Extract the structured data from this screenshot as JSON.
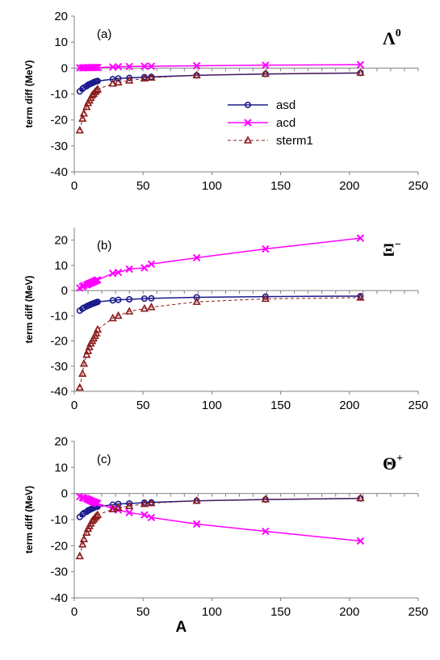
{
  "chart_data": [
    {
      "type": "line",
      "panel_label": "(a)",
      "particle": {
        "symbol": "Λ",
        "sup": "0"
      },
      "ylabel": "term diff (MeV)",
      "xlabel": "",
      "xlim": [
        0,
        250
      ],
      "ylim": [
        -40,
        20
      ],
      "xticks": [
        "0",
        "50",
        "100",
        "150",
        "200",
        "250"
      ],
      "yticks": [
        "20",
        "10",
        "0",
        "-10",
        "-20",
        "-30",
        "-40"
      ],
      "legend": {
        "position": "center",
        "entries": [
          "asd",
          "acd",
          "sterm1"
        ]
      },
      "x": [
        4,
        6,
        7,
        9,
        10,
        11,
        12,
        13,
        14,
        15,
        16,
        17,
        28,
        32,
        40,
        51,
        56,
        89,
        139,
        208
      ],
      "series": [
        {
          "name": "asd",
          "color": "#1a1a8c",
          "marker": "circle",
          "line": "solid",
          "values": [
            -9,
            -8,
            -7.5,
            -7,
            -6.5,
            -6.3,
            -6,
            -5.8,
            -5.5,
            -5.3,
            -5.1,
            -5,
            -4.3,
            -4,
            -3.8,
            -3.5,
            -3.4,
            -2.8,
            -2.3,
            -1.9
          ]
        },
        {
          "name": "acd",
          "color": "#ff00ff",
          "marker": "x",
          "line": "solid",
          "values": [
            0.1,
            0.1,
            0.1,
            0.15,
            0.15,
            0.15,
            0.2,
            0.2,
            0.2,
            0.2,
            0.2,
            0.2,
            0.4,
            0.5,
            0.6,
            0.7,
            0.7,
            0.9,
            1.1,
            1.3
          ]
        },
        {
          "name": "sterm1",
          "color": "#8b1a1a",
          "marker": "triangle",
          "line": "dashed",
          "values": [
            -24,
            -19.5,
            -17.5,
            -15,
            -13.5,
            -12.5,
            -11.5,
            -10.5,
            -10,
            -9.3,
            -8.7,
            -8.2,
            -6,
            -5.5,
            -4.8,
            -4,
            -3.7,
            -2.8,
            -2.2,
            -1.8
          ]
        }
      ]
    },
    {
      "type": "line",
      "panel_label": "(b)",
      "particle": {
        "symbol": "Ξ",
        "sup": "−"
      },
      "ylabel": "term diff (MeV)",
      "xlabel": "",
      "xlim": [
        0,
        250
      ],
      "ylim": [
        -40,
        25
      ],
      "xticks": [
        "0",
        "50",
        "100",
        "150",
        "200",
        "250"
      ],
      "yticks": [
        "20",
        "10",
        "0",
        "-10",
        "-20",
        "-30",
        "-40"
      ],
      "x": [
        4,
        6,
        7,
        9,
        10,
        11,
        12,
        13,
        14,
        15,
        16,
        17,
        28,
        32,
        40,
        51,
        56,
        89,
        139,
        208
      ],
      "series": [
        {
          "name": "asd",
          "color": "#1a1a8c",
          "marker": "circle",
          "line": "solid",
          "values": [
            -8,
            -7.2,
            -6.8,
            -6.3,
            -6,
            -5.8,
            -5.5,
            -5.3,
            -5.1,
            -4.9,
            -4.7,
            -4.5,
            -3.9,
            -3.7,
            -3.5,
            -3.2,
            -3.1,
            -2.7,
            -2.4,
            -2.2
          ]
        },
        {
          "name": "acd",
          "color": "#ff00ff",
          "marker": "x",
          "line": "solid",
          "values": [
            1,
            1.5,
            2,
            2.2,
            2.5,
            2.8,
            3,
            3.2,
            3.5,
            3.7,
            4,
            4.2,
            6.8,
            7.2,
            8.5,
            9,
            10.5,
            13,
            16.5,
            20.8
          ]
        },
        {
          "name": "sterm1",
          "color": "#8b1a1a",
          "marker": "triangle",
          "line": "dashed",
          "values": [
            -38.5,
            -33,
            -29,
            -25.5,
            -24,
            -22.5,
            -21,
            -20,
            -19,
            -18,
            -17,
            -15.5,
            -11,
            -10,
            -8.3,
            -7.2,
            -6.6,
            -4.5,
            -3.3,
            -2.8
          ]
        }
      ]
    },
    {
      "type": "line",
      "panel_label": "(c)",
      "particle": {
        "symbol": "Θ",
        "sup": "+"
      },
      "ylabel": "term diff (MeV)",
      "xlabel": "A",
      "xlim": [
        0,
        250
      ],
      "ylim": [
        -40,
        20
      ],
      "xticks": [
        "0",
        "50",
        "100",
        "150",
        "200",
        "250"
      ],
      "yticks": [
        "20",
        "10",
        "0",
        "-10",
        "-20",
        "-30",
        "-40"
      ],
      "x": [
        4,
        6,
        7,
        9,
        10,
        11,
        12,
        13,
        14,
        15,
        16,
        17,
        28,
        32,
        40,
        51,
        56,
        89,
        139,
        208
      ],
      "series": [
        {
          "name": "asd",
          "color": "#1a1a8c",
          "marker": "circle",
          "line": "solid",
          "values": [
            -9,
            -8,
            -7.5,
            -7,
            -6.5,
            -6.3,
            -6,
            -5.8,
            -5.5,
            -5.3,
            -5.1,
            -5,
            -4.3,
            -4,
            -3.8,
            -3.5,
            -3.4,
            -2.8,
            -2.3,
            -1.9
          ]
        },
        {
          "name": "acd",
          "color": "#ff00ff",
          "marker": "x",
          "line": "solid",
          "values": [
            -1.2,
            -1.5,
            -1.8,
            -2,
            -2.3,
            -2.5,
            -2.8,
            -3,
            -3.2,
            -3.4,
            -3.6,
            -3.8,
            -5.8,
            -6.3,
            -7.3,
            -8.2,
            -9.2,
            -11.7,
            -14.5,
            -18.2
          ]
        },
        {
          "name": "sterm1",
          "color": "#8b1a1a",
          "marker": "triangle",
          "line": "dashed",
          "values": [
            -24,
            -19.5,
            -17.5,
            -15,
            -13.5,
            -12.5,
            -11.5,
            -10.5,
            -10,
            -9.3,
            -8.7,
            -8.2,
            -6,
            -5.5,
            -4.8,
            -4,
            -3.7,
            -2.8,
            -2.2,
            -1.8
          ]
        }
      ]
    }
  ]
}
